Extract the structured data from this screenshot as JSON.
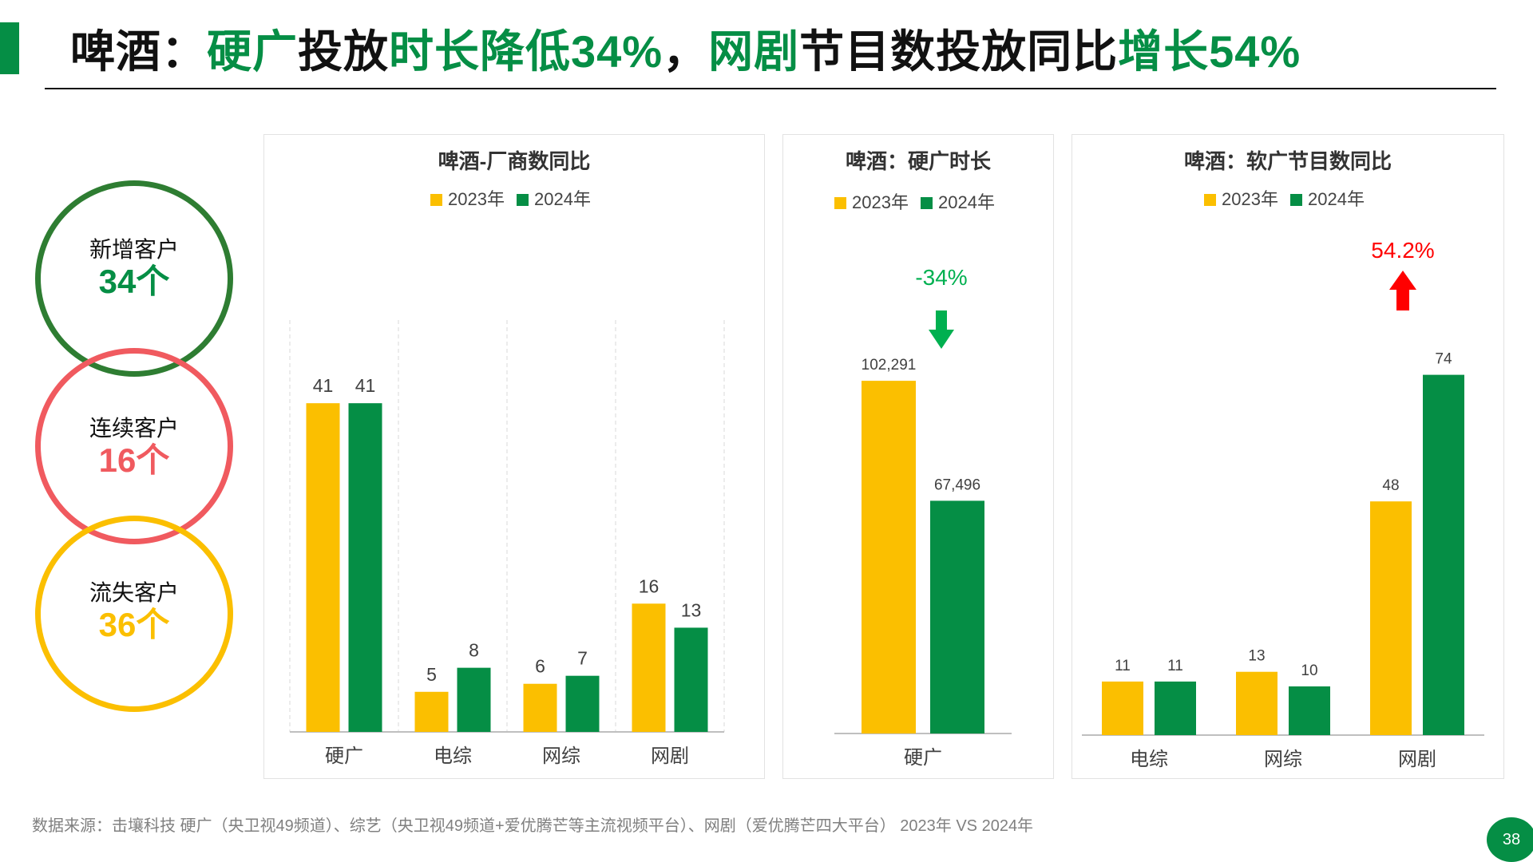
{
  "header": {
    "title_parts": [
      {
        "text": "啤酒：",
        "green": false
      },
      {
        "text": "硬广",
        "green": true
      },
      {
        "text": "投放",
        "green": false
      },
      {
        "text": "时长降低34%",
        "green": true
      },
      {
        "text": "，",
        "green": false
      },
      {
        "text": "网剧",
        "green": true
      },
      {
        "text": "节目数投放同比",
        "green": false
      },
      {
        "text": "增长54%",
        "green": true
      }
    ]
  },
  "summary": {
    "items": [
      {
        "label": "新增客户",
        "value": "34个",
        "color": "#2e7d32",
        "value_color": "#058e45"
      },
      {
        "label": "连续客户",
        "value": "16个",
        "color": "#f05a5f",
        "value_color": "#f05a5f"
      },
      {
        "label": "流失客户",
        "value": "36个",
        "color": "#fbbf00",
        "value_color": "#fbbf00"
      }
    ]
  },
  "colors": {
    "y2023": "#fbbf00",
    "y2024": "#058e45",
    "up": "#ff0000",
    "down": "#00b050"
  },
  "chart_data": [
    {
      "type": "bar",
      "title": "啤酒-厂商数同比",
      "categories": [
        "硬广",
        "电综",
        "网综",
        "网剧"
      ],
      "series": [
        {
          "name": "2023年",
          "values": [
            41,
            5,
            6,
            16
          ],
          "labels": [
            "41",
            "5",
            "6",
            "16"
          ]
        },
        {
          "name": "2024年",
          "values": [
            41,
            8,
            7,
            13
          ],
          "labels": [
            "41",
            "8",
            "7",
            "13"
          ]
        }
      ],
      "ylim": [
        0,
        45
      ],
      "grid": "vertical-dashed",
      "legend": "top"
    },
    {
      "type": "bar",
      "title": "啤酒：硬广时长",
      "categories": [
        "硬广"
      ],
      "series": [
        {
          "name": "2023年",
          "values": [
            102291
          ],
          "labels": [
            "102,291"
          ]
        },
        {
          "name": "2024年",
          "values": [
            67496
          ],
          "labels": [
            "67,496"
          ]
        }
      ],
      "ylim": [
        0,
        125000
      ],
      "annotation": {
        "text": "-34%",
        "direction": "down"
      },
      "legend": "top"
    },
    {
      "type": "bar",
      "title": "啤酒：软广节目数同比",
      "categories": [
        "电综",
        "网综",
        "网剧"
      ],
      "series": [
        {
          "name": "2023年",
          "values": [
            11,
            13,
            48
          ],
          "labels": [
            "11",
            "13",
            "48"
          ]
        },
        {
          "name": "2024年",
          "values": [
            11,
            10,
            74
          ],
          "labels": [
            "11",
            "10",
            "74"
          ]
        }
      ],
      "ylim": [
        0,
        80
      ],
      "annotation": {
        "text": "54.2%",
        "direction": "up"
      },
      "legend": "top"
    }
  ],
  "footer": {
    "source": "数据来源：击壤科技  硬广（央卫视49频道）、综艺（央卫视49频道+爱优腾芒等主流视频平台）、网剧（爱优腾芒四大平台）  2023年 VS 2024年"
  },
  "page": {
    "number": "38"
  }
}
